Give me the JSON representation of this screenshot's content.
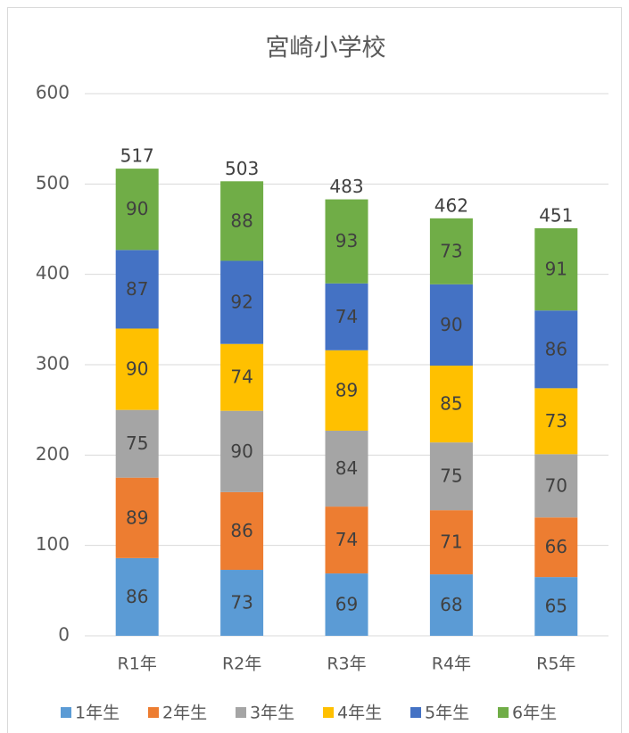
{
  "chart_data": {
    "type": "stacked_bar",
    "title": "宮崎小学校",
    "categories": [
      "R1年",
      "R2年",
      "R3年",
      "R4年",
      "R5年"
    ],
    "series": [
      {
        "name": "1年生",
        "color": "#5b9bd5",
        "values": [
          86,
          73,
          69,
          68,
          65
        ]
      },
      {
        "name": "2年生",
        "color": "#ed7d31",
        "values": [
          89,
          86,
          74,
          71,
          66
        ]
      },
      {
        "name": "3年生",
        "color": "#a5a5a5",
        "values": [
          75,
          90,
          84,
          75,
          70
        ]
      },
      {
        "name": "4年生",
        "color": "#ffc000",
        "values": [
          90,
          74,
          89,
          85,
          73
        ]
      },
      {
        "name": "5年生",
        "color": "#4472c4",
        "values": [
          87,
          92,
          74,
          90,
          86
        ]
      },
      {
        "name": "6年生",
        "color": "#70ad47",
        "values": [
          90,
          88,
          93,
          73,
          91
        ]
      }
    ],
    "totals": [
      517,
      503,
      483,
      462,
      451
    ],
    "ylim": [
      0,
      600
    ],
    "yticks": [
      0,
      100,
      200,
      300,
      400,
      500,
      600
    ],
    "grid": true,
    "legend": "bottom"
  }
}
